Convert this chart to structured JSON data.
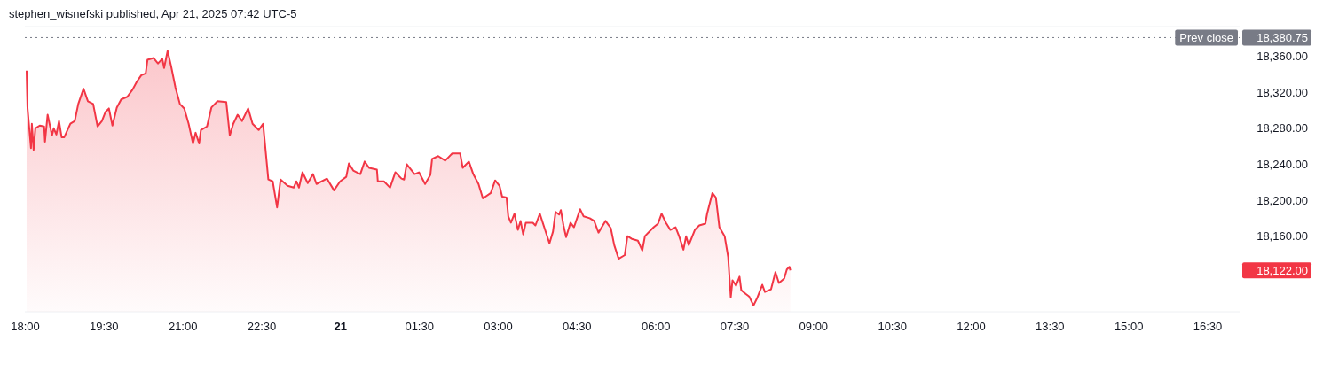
{
  "chart_data": {
    "type": "area",
    "title": "stephen_wisnefski published, Apr 21, 2025 07:42 UTC-5",
    "x": [
      "2025-04-20T18:02",
      "2025-04-20T18:03",
      "2025-04-20T18:07",
      "2025-04-20T18:08",
      "2025-04-20T18:10",
      "2025-04-20T18:12",
      "2025-04-20T18:17",
      "2025-04-20T18:22",
      "2025-04-20T18:23",
      "2025-04-20T18:26",
      "2025-04-20T18:31",
      "2025-04-20T18:33",
      "2025-04-20T18:36",
      "2025-04-20T18:39",
      "2025-04-20T18:42",
      "2025-04-20T18:45",
      "2025-04-20T18:52",
      "2025-04-20T18:57",
      "2025-04-20T19:01",
      "2025-04-20T19:07",
      "2025-04-20T19:12",
      "2025-04-20T19:18",
      "2025-04-20T19:23",
      "2025-04-20T19:28",
      "2025-04-20T19:32",
      "2025-04-20T19:36",
      "2025-04-20T19:40",
      "2025-04-20T19:45",
      "2025-04-20T19:50",
      "2025-04-20T19:57",
      "2025-04-20T20:03",
      "2025-04-20T20:08",
      "2025-04-20T20:13",
      "2025-04-20T20:18",
      "2025-04-20T20:20",
      "2025-04-20T20:27",
      "2025-04-20T20:32",
      "2025-04-20T20:37",
      "2025-04-20T20:39",
      "2025-04-20T20:43",
      "2025-04-20T20:47",
      "2025-04-20T20:52",
      "2025-04-20T20:57",
      "2025-04-20T21:02",
      "2025-04-20T21:07",
      "2025-04-20T21:12",
      "2025-04-20T21:15",
      "2025-04-20T21:19",
      "2025-04-20T21:21",
      "2025-04-20T21:28",
      "2025-04-20T21:33",
      "2025-04-20T21:40",
      "2025-04-20T21:50",
      "2025-04-20T21:54",
      "2025-04-20T21:58",
      "2025-04-20T22:03",
      "2025-04-20T22:08",
      "2025-04-20T22:15",
      "2025-04-20T22:20",
      "2025-04-20T22:27",
      "2025-04-20T22:32",
      "2025-04-20T22:38",
      "2025-04-20T22:43",
      "2025-04-20T22:48",
      "2025-04-20T22:52",
      "2025-04-20T23:00",
      "2025-04-20T23:07",
      "2025-04-20T23:10",
      "2025-04-20T23:13",
      "2025-04-20T23:17",
      "2025-04-20T23:23",
      "2025-04-20T23:29",
      "2025-04-20T23:33",
      "2025-04-20T23:45",
      "2025-04-20T23:53",
      "2025-04-21T00:00",
      "2025-04-21T00:07",
      "2025-04-21T00:10",
      "2025-04-21T00:15",
      "2025-04-21T00:23",
      "2025-04-21T00:28",
      "2025-04-21T00:33",
      "2025-04-21T00:42",
      "2025-04-21T00:43",
      "2025-04-21T00:50",
      "2025-04-21T00:57",
      "2025-04-21T01:03",
      "2025-04-21T01:10",
      "2025-04-21T01:13",
      "2025-04-21T01:16",
      "2025-04-21T01:25",
      "2025-04-21T01:30",
      "2025-04-21T01:37",
      "2025-04-21T01:43",
      "2025-04-21T01:45",
      "2025-04-21T01:52",
      "2025-04-21T02:00",
      "2025-04-21T02:08",
      "2025-04-21T02:17",
      "2025-04-21T02:20",
      "2025-04-21T02:27",
      "2025-04-21T02:32",
      "2025-04-21T02:38",
      "2025-04-21T02:43",
      "2025-04-21T02:52",
      "2025-04-21T02:57",
      "2025-04-21T03:02",
      "2025-04-21T03:05",
      "2025-04-21T03:10",
      "2025-04-21T03:12",
      "2025-04-21T03:15",
      "2025-04-21T03:19",
      "2025-04-21T03:23",
      "2025-04-21T03:26",
      "2025-04-21T03:29",
      "2025-04-21T03:32",
      "2025-04-21T03:40",
      "2025-04-21T03:43",
      "2025-04-21T03:48",
      "2025-04-21T03:53",
      "2025-04-21T03:59",
      "2025-04-21T04:03",
      "2025-04-21T04:06",
      "2025-04-21T04:10",
      "2025-04-21T04:12",
      "2025-04-21T04:15",
      "2025-04-21T04:18",
      "2025-04-21T04:23",
      "2025-04-21T04:27",
      "2025-04-21T04:34",
      "2025-04-21T04:38",
      "2025-04-21T04:45",
      "2025-04-21T04:50",
      "2025-04-21T04:55",
      "2025-04-21T05:03",
      "2025-04-21T05:09",
      "2025-04-21T05:13",
      "2025-04-21T05:18",
      "2025-04-21T05:25",
      "2025-04-21T05:28",
      "2025-04-21T05:33",
      "2025-04-21T05:40",
      "2025-04-21T05:45",
      "2025-04-21T05:48",
      "2025-04-21T05:55",
      "2025-04-21T05:58",
      "2025-04-21T06:03",
      "2025-04-21T06:07",
      "2025-04-21T06:12",
      "2025-04-21T06:17",
      "2025-04-21T06:23",
      "2025-04-21T06:27",
      "2025-04-21T06:32",
      "2025-04-21T06:35",
      "2025-04-21T06:38",
      "2025-04-21T06:45",
      "2025-04-21T06:50",
      "2025-04-21T06:57",
      "2025-04-21T06:59",
      "2025-04-21T07:05",
      "2025-04-21T07:09",
      "2025-04-21T07:13",
      "2025-04-21T07:19",
      "2025-04-21T07:23",
      "2025-04-21T07:26",
      "2025-04-21T07:28",
      "2025-04-21T07:32",
      "2025-04-21T07:36",
      "2025-04-21T07:38",
      "2025-04-21T07:43",
      "2025-04-21T07:47",
      "2025-04-21T07:52",
      "2025-04-21T07:56",
      "2025-04-21T08:02",
      "2025-04-21T08:05",
      "2025-04-21T08:12",
      "2025-04-21T08:17",
      "2025-04-21T08:21",
      "2025-04-21T08:27",
      "2025-04-21T08:30",
      "2025-04-21T08:33",
      "2025-04-21T08:34"
    ],
    "series": [
      {
        "color": "#f23645",
        "values": [
          18344,
          18303,
          18258,
          18285,
          18256,
          18280,
          18283,
          18282,
          18265,
          18295,
          18272,
          18280,
          18273,
          18288,
          18270,
          18270,
          18285,
          18288,
          18307,
          18324,
          18310,
          18307,
          18282,
          18288,
          18298,
          18302,
          18283,
          18303,
          18312,
          18315,
          18323,
          18332,
          18339,
          18341,
          18356,
          18358,
          18352,
          18357,
          18347,
          18366,
          18349,
          18325,
          18307,
          18302,
          18285,
          18263,
          18275,
          18263,
          18278,
          18282,
          18303,
          18310,
          18309,
          18272,
          18285,
          18295,
          18288,
          18302,
          18285,
          18278,
          18285,
          18223,
          18221,
          18192,
          18223,
          18216,
          18214,
          18221,
          18214,
          18231,
          18219,
          18229,
          18218,
          18224,
          18211,
          18221,
          18226,
          18241,
          18233,
          18229,
          18243,
          18236,
          18234,
          18221,
          18221,
          18214,
          18231,
          18224,
          18223,
          18240,
          18229,
          18231,
          18218,
          18228,
          18246,
          18249,
          18244,
          18252,
          18252,
          18236,
          18243,
          18229,
          18218,
          18202,
          18208,
          18222,
          18216,
          18204,
          18203,
          18182,
          18175,
          18185,
          18167,
          18177,
          18162,
          18175,
          18175,
          18172,
          18185,
          18170,
          18152,
          18165,
          18187,
          18184,
          18189,
          18172,
          18159,
          18175,
          18170,
          18190,
          18182,
          18180,
          18177,
          18164,
          18177,
          18169,
          18150,
          18135,
          18139,
          18160,
          18157,
          18155,
          18144,
          18160,
          18167,
          18170,
          18174,
          18185,
          18175,
          18167,
          18170,
          18160,
          18145,
          18160,
          18150,
          18167,
          18172,
          18174,
          18185,
          18208,
          18203,
          18170,
          18160,
          18137,
          18092,
          18111,
          18105,
          18115,
          18100,
          18096,
          18093,
          18083,
          18091,
          18106,
          18098,
          18101,
          18120,
          18108,
          18113,
          18123,
          18126,
          18122
        ]
      }
    ],
    "xlim": [
      "2025-04-20T18:00",
      "2025-04-21T17:08"
    ],
    "ylim": [
      18076,
      18393
    ],
    "xticks": [
      {
        "value": "2025-04-20T18:00",
        "label": "18:00"
      },
      {
        "value": "2025-04-20T19:30",
        "label": "19:30"
      },
      {
        "value": "2025-04-20T21:00",
        "label": "21:00"
      },
      {
        "value": "2025-04-20T22:30",
        "label": "22:30"
      },
      {
        "value": "2025-04-21T00:00",
        "label": "21"
      },
      {
        "value": "2025-04-21T01:30",
        "label": "01:30"
      },
      {
        "value": "2025-04-21T03:00",
        "label": "03:00"
      },
      {
        "value": "2025-04-21T04:30",
        "label": "04:30"
      },
      {
        "value": "2025-04-21T06:00",
        "label": "06:00"
      },
      {
        "value": "2025-04-21T07:30",
        "label": "07:30"
      },
      {
        "value": "2025-04-21T09:00",
        "label": "09:00"
      },
      {
        "value": "2025-04-21T10:30",
        "label": "10:30"
      },
      {
        "value": "2025-04-21T12:00",
        "label": "12:00"
      },
      {
        "value": "2025-04-21T13:30",
        "label": "13:30"
      },
      {
        "value": "2025-04-21T15:00",
        "label": "15:00"
      },
      {
        "value": "2025-04-21T16:30",
        "label": "16:30"
      }
    ],
    "yticks": [
      {
        "value": 18160,
        "label": "18,160.00"
      },
      {
        "value": 18200,
        "label": "18,200.00"
      },
      {
        "value": 18240,
        "label": "18,240.00"
      },
      {
        "value": 18280,
        "label": "18,280.00"
      },
      {
        "value": 18320,
        "label": "18,320.00"
      },
      {
        "value": 18360,
        "label": "18,360.00"
      }
    ],
    "ref_lines": [
      {
        "axis": "y",
        "value": 18380.75,
        "label": "Prev close",
        "color": "#787b86",
        "line_style": "dotted"
      }
    ],
    "annotations": [
      {
        "text": "18,380.75",
        "x": "2025-04-21T17:08",
        "y": 18380.75
      },
      "18,122.00"
    ],
    "grid": false
  }
}
